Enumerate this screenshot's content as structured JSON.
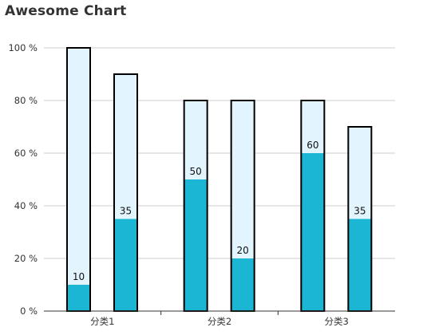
{
  "title": "Awesome Chart",
  "chart_data": {
    "type": "bar",
    "title": "Awesome Chart",
    "categories": [
      "分类1",
      "分类2",
      "分类3"
    ],
    "series": [
      {
        "role": "total",
        "values": [
          100,
          80,
          80
        ]
      },
      {
        "role": "value",
        "values": [
          10,
          50,
          60
        ]
      },
      {
        "role": "total",
        "values": [
          90,
          80,
          70
        ]
      },
      {
        "role": "value",
        "values": [
          35,
          20,
          35
        ]
      }
    ],
    "bar_groups": [
      {
        "total": [
          100,
          80,
          80
        ],
        "value": [
          10,
          50,
          60
        ]
      },
      {
        "total": [
          90,
          80,
          70
        ],
        "value": [
          35,
          20,
          35
        ]
      }
    ],
    "data_labels": [
      [
        "10",
        "35"
      ],
      [
        "50",
        "20"
      ],
      [
        "60",
        "35"
      ]
    ],
    "xlabel": "",
    "ylabel": "",
    "ylim": [
      0,
      100
    ],
    "yticks": [
      "0 %",
      "20 %",
      "40 %",
      "60 %",
      "80 %",
      "100 %"
    ],
    "grid": true,
    "colors": {
      "value_fill": "#1bb6d4",
      "total_fill": "#e2f4fd",
      "bar_stroke": "#000000",
      "grid": "#cccccc",
      "axis": "#333333"
    }
  }
}
